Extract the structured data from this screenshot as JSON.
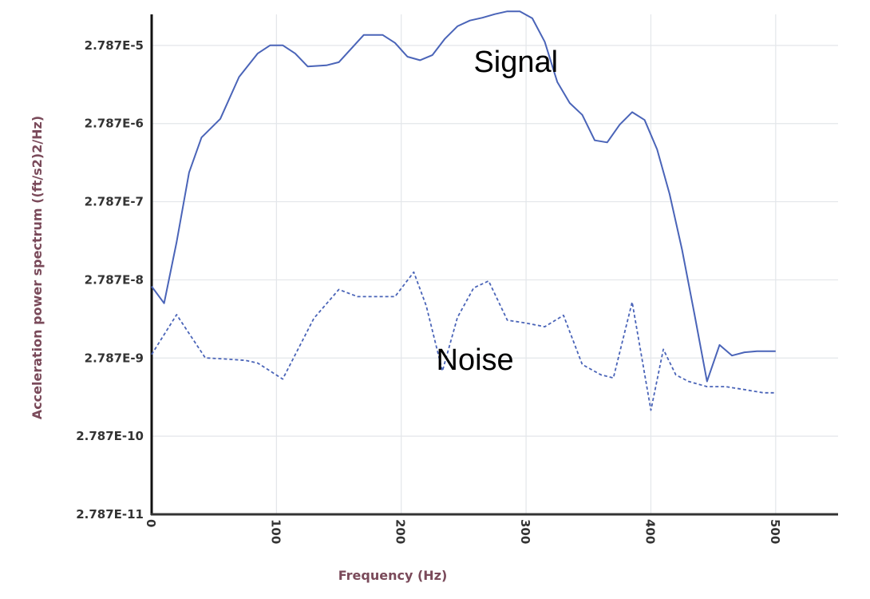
{
  "chart_data": {
    "type": "line",
    "xlabel": "Frequency (Hz)",
    "ylabel": "Acceleration power spectrum ((ft/s2)2/Hz)",
    "y_scale": "log",
    "grid": true,
    "xlim": [
      0,
      550
    ],
    "ylim_decades": [
      "2.787E-11",
      "2.787E-4"
    ],
    "x_ticks": [
      0,
      100,
      200,
      300,
      400,
      500
    ],
    "x_tick_labels": [
      "0",
      "100",
      "200",
      "300",
      "400",
      "500"
    ],
    "y_tick_labels": [
      "2.787E-11",
      "2.787E-10",
      "2.787E-9",
      "2.787E-8",
      "2.787E-7",
      "2.787E-6",
      "2.787E-5"
    ],
    "y_tick_values": [
      2.787e-11,
      2.787e-10,
      2.787e-09,
      2.787e-08,
      2.787e-07,
      2.787e-06,
      2.787e-05
    ],
    "annotations": [
      {
        "text": "Signal",
        "x": 290,
        "y": 1.7e-05
      },
      {
        "text": "Noise",
        "x": 260,
        "y": 2.6e-09
      }
    ],
    "series": [
      {
        "color": "#4a64b8",
        "dash": "solid",
        "x": [
          0,
          10,
          20,
          30,
          40,
          55,
          70,
          85,
          95,
          105,
          115,
          125,
          140,
          150,
          170,
          185,
          195,
          205,
          215,
          225,
          235,
          245,
          255,
          265,
          275,
          285,
          295,
          305,
          315,
          325,
          335,
          345,
          355,
          365,
          375,
          385,
          395,
          405,
          415,
          425,
          435,
          445,
          455,
          465,
          475,
          485,
          495,
          500
        ],
        "y": [
          2.3e-08,
          1.4e-08,
          8.5e-08,
          6.6e-07,
          1.85e-06,
          3.2e-06,
          1.1e-05,
          2.2e-05,
          2.8e-05,
          2.8e-05,
          2.2e-05,
          1.5e-05,
          1.55e-05,
          1.7e-05,
          3.8e-05,
          3.8e-05,
          3e-05,
          2e-05,
          1.8e-05,
          2.1e-05,
          3.4e-05,
          4.9e-05,
          5.8e-05,
          6.3e-05,
          7e-05,
          7.6e-05,
          7.6e-05,
          6.2e-05,
          3.1e-05,
          9.5e-06,
          5.1e-06,
          3.6e-06,
          1.7e-06,
          1.6e-06,
          2.7e-06,
          3.9e-06,
          3.1e-06,
          1.3e-06,
          3.5e-07,
          6.8e-08,
          1e-08,
          1.4e-09,
          4.1e-09,
          3e-09,
          3.3e-09,
          3.4e-09,
          3.4e-09,
          3.4e-09
        ]
      },
      {
        "color": "#4a64b8",
        "dash": "dashed",
        "x": [
          0,
          20,
          43,
          60,
          75,
          85,
          105,
          130,
          150,
          165,
          180,
          195,
          210,
          220,
          233,
          245,
          258,
          270,
          285,
          300,
          315,
          330,
          345,
          360,
          370,
          385,
          400,
          410,
          420,
          430,
          445,
          460,
          475,
          490,
          500
        ],
        "y": [
          3.1e-09,
          1e-08,
          2.8e-09,
          2.7e-09,
          2.6e-09,
          2.4e-09,
          1.5e-09,
          9e-09,
          2.1e-08,
          1.7e-08,
          1.7e-08,
          1.7e-08,
          3.5e-08,
          1.3e-08,
          1.9e-09,
          9.2e-09,
          2.2e-08,
          2.7e-08,
          8.5e-09,
          7.8e-09,
          7e-09,
          9.8e-09,
          2.3e-09,
          1.7e-09,
          1.55e-09,
          1.45e-08,
          6e-10,
          3.6e-09,
          1.7e-09,
          1.4e-09,
          1.2e-09,
          1.2e-09,
          1.1e-09,
          1e-09,
          1e-09
        ]
      }
    ]
  }
}
